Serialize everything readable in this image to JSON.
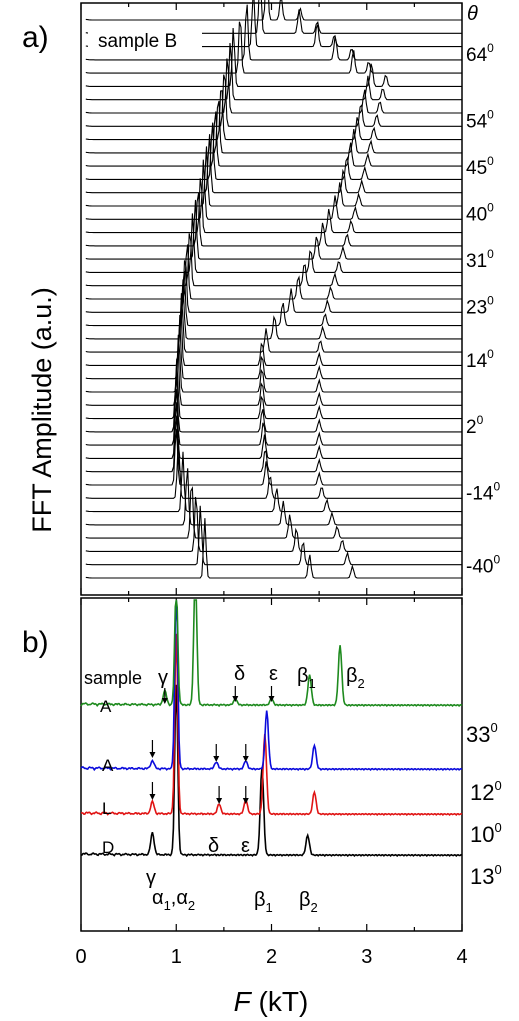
{
  "panel_a": {
    "label": "a)",
    "sample_label": "sample B",
    "ylabel": "FFT Amplitude (a.u.)",
    "theta_header": "θ",
    "angle_labels": [
      {
        "text": "64",
        "deg": "0",
        "trace": 2.5
      },
      {
        "text": "54",
        "deg": "0",
        "trace": 7.5
      },
      {
        "text": "45",
        "deg": "0",
        "trace": 11
      },
      {
        "text": "40",
        "deg": "0",
        "trace": 14.5
      },
      {
        "text": "31",
        "deg": "0",
        "trace": 18
      },
      {
        "text": "23",
        "deg": "0",
        "trace": 21.5
      },
      {
        "text": "14",
        "deg": "0",
        "trace": 25.5
      },
      {
        "text": "2",
        "deg": "0",
        "trace": 30.5
      },
      {
        "text": "-14",
        "deg": "0",
        "trace": 35.5
      },
      {
        "text": "-40",
        "deg": "0",
        "trace": 41
      }
    ]
  },
  "panel_b": {
    "label": "b)",
    "header_sample": "sample",
    "curve_labels": [
      {
        "sample": "A",
        "angle": "33",
        "deg": "0",
        "color": "#1e8a1e"
      },
      {
        "sample": "A",
        "angle": "12",
        "deg": "0",
        "color": "#0b0bdc"
      },
      {
        "sample": "L",
        "angle": "10",
        "deg": "0",
        "color": "#e01414"
      },
      {
        "sample": "D",
        "angle": "13",
        "deg": "0",
        "color": "#000000"
      }
    ],
    "peak_labels": {
      "gamma_top": "γ",
      "delta_top": "δ",
      "epsilon_top": "ε",
      "beta1_top": {
        "base": "β",
        "sub": "1"
      },
      "beta2_top": {
        "base": "β",
        "sub": "2"
      },
      "gamma_low": "γ",
      "delta_low": "δ",
      "epsilon_low": "ε",
      "alpha": {
        "a": "α",
        "s1": "1",
        "sep": ",α",
        "s2": "2"
      },
      "beta1_low": {
        "base": "β",
        "sub": "1"
      },
      "beta2_low": {
        "base": "β",
        "sub": "2"
      }
    }
  },
  "chart_data": [
    {
      "type": "line",
      "title": "",
      "ylabel": "FFT Amplitude (a.u.)",
      "xlabel": "",
      "xlim": [
        0,
        4
      ],
      "n_traces": 43,
      "peak_branches_kT": [
        {
          "angle_top": "64°",
          "peaks": [
            1.95,
            2.1,
            2.3
          ]
        },
        {
          "angle_top": "54°",
          "peaks": [
            1.6,
            3.05,
            3.2
          ]
        },
        {
          "angle_top": "40°",
          "peaks": [
            1.3,
            2.7,
            2.9
          ]
        },
        {
          "angle_top": "23°",
          "peaks": [
            1.1,
            2.25,
            2.6
          ]
        },
        {
          "angle_top": "14°",
          "peaks": [
            1.05,
            1.9,
            2.5
          ]
        },
        {
          "angle_top": "2°",
          "peaks": [
            1.0,
            1.9
          ]
        },
        {
          "angle_top": "-14°",
          "peaks": [
            1.0,
            1.95,
            2.5
          ]
        },
        {
          "angle_top": "-40°",
          "peaks": [
            1.3,
            2.4,
            2.85
          ]
        }
      ]
    },
    {
      "type": "line",
      "title": "",
      "xlabel": "F (kT)",
      "xlim": [
        0,
        4
      ],
      "x_ticks": [
        "0",
        "1",
        "2",
        "3",
        "4"
      ],
      "series": [
        {
          "name": "A 33°",
          "peaks_kT": {
            "γ": 0.88,
            "α": 1.0,
            "main": 1.2,
            "δ": 1.62,
            "ε": 2.0,
            "β1": 2.4,
            "β2": 2.72
          }
        },
        {
          "name": "A 12°",
          "peaks_kT": {
            "γ": 0.75,
            "α": 1.0,
            "δ": 1.42,
            "ε": 1.73,
            "β1": 1.95,
            "β2": 2.45
          }
        },
        {
          "name": "L 10°",
          "peaks_kT": {
            "γ": 0.75,
            "α": 1.0,
            "δ": 1.45,
            "ε": 1.73,
            "β1": 1.93,
            "β2": 2.45
          }
        },
        {
          "name": "D 13°",
          "peaks_kT": {
            "γ": 0.75,
            "α": 1.0,
            "β1": 1.9,
            "β2": 2.38
          }
        }
      ]
    }
  ]
}
